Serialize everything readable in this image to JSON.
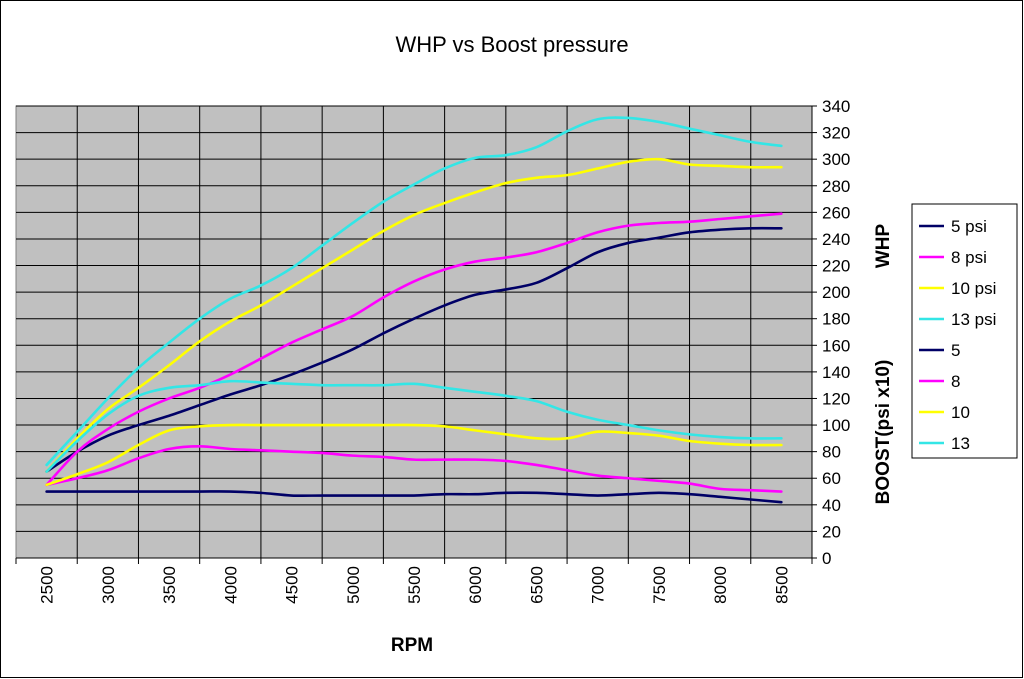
{
  "chart_data": {
    "type": "line",
    "title": "WHP vs Boost pressure",
    "xlabel": "RPM",
    "ylabel": "WHP",
    "ylabel2": "BOOST(psi x10)",
    "x_ticks": [
      2500,
      3000,
      3500,
      4000,
      4500,
      5000,
      5500,
      6000,
      6500,
      7000,
      7500,
      8000,
      8500
    ],
    "x": [
      2500,
      2750,
      3000,
      3250,
      3500,
      3750,
      4000,
      4250,
      4500,
      4750,
      5000,
      5250,
      5500,
      5750,
      6000,
      6250,
      6500,
      6750,
      7000,
      7250,
      7500,
      7750,
      8000,
      8250,
      8500
    ],
    "ylim": [
      0,
      340
    ],
    "y_ticks": [
      0,
      20,
      40,
      60,
      80,
      100,
      120,
      140,
      160,
      180,
      200,
      220,
      240,
      260,
      280,
      300,
      320,
      340
    ],
    "grid": true,
    "legend_position": "right",
    "series": [
      {
        "name": "5 psi",
        "color": "#000066",
        "values": [
          65,
          80,
          92,
          100,
          107,
          115,
          123,
          130,
          138,
          147,
          157,
          169,
          180,
          190,
          198,
          202,
          207,
          218,
          230,
          237,
          241,
          245,
          247,
          248,
          248
        ]
      },
      {
        "name": "8 psi",
        "color": "#ff00ff",
        "values": [
          55,
          80,
          97,
          110,
          120,
          128,
          138,
          150,
          162,
          172,
          182,
          196,
          208,
          217,
          223,
          226,
          230,
          237,
          245,
          250,
          252,
          253,
          255,
          257,
          259
        ]
      },
      {
        "name": "10 psi",
        "color": "#ffff00",
        "values": [
          65,
          90,
          112,
          128,
          145,
          163,
          178,
          190,
          204,
          218,
          232,
          246,
          258,
          267,
          275,
          282,
          286,
          288,
          293,
          298,
          300,
          296,
          295,
          294,
          294
        ]
      },
      {
        "name": "13 psi",
        "color": "#33e6e6",
        "values": [
          70,
          95,
          120,
          143,
          162,
          180,
          195,
          205,
          218,
          235,
          252,
          268,
          281,
          293,
          301,
          303,
          309,
          321,
          330,
          331,
          328,
          323,
          318,
          313,
          310
        ]
      },
      {
        "name": "5",
        "color": "#000066",
        "values": [
          50,
          50,
          50,
          50,
          50,
          50,
          50,
          49,
          47,
          47,
          47,
          47,
          47,
          48,
          48,
          49,
          49,
          48,
          47,
          48,
          49,
          48,
          46,
          44,
          42
        ]
      },
      {
        "name": "8",
        "color": "#ff00ff",
        "values": [
          55,
          60,
          66,
          75,
          82,
          84,
          82,
          81,
          80,
          79,
          77,
          76,
          74,
          74,
          74,
          73,
          70,
          66,
          62,
          60,
          58,
          56,
          52,
          51,
          50
        ]
      },
      {
        "name": "10",
        "color": "#ffff00",
        "values": [
          55,
          63,
          72,
          85,
          96,
          99,
          100,
          100,
          100,
          100,
          100,
          100,
          100,
          99,
          96,
          93,
          90,
          90,
          95,
          94,
          92,
          88,
          86,
          85,
          85
        ]
      },
      {
        "name": "13",
        "color": "#33e6e6",
        "values": [
          65,
          88,
          108,
          122,
          128,
          130,
          133,
          132,
          131,
          130,
          130,
          130,
          131,
          128,
          125,
          122,
          118,
          110,
          104,
          100,
          96,
          93,
          91,
          90,
          90
        ]
      }
    ]
  }
}
